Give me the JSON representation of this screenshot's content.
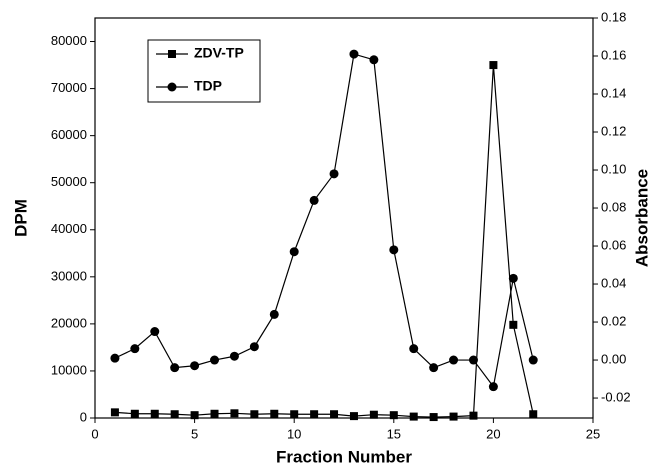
{
  "chart_data": {
    "type": "line",
    "x_label": "Fraction Number",
    "y_label": "DPM",
    "y2_label": "Absorbance",
    "x": [
      1,
      2,
      3,
      4,
      5,
      6,
      7,
      8,
      9,
      10,
      11,
      12,
      13,
      14,
      15,
      16,
      17,
      18,
      19,
      20,
      21,
      22
    ],
    "series": [
      {
        "name": "ZDV-TP",
        "color": "#000000",
        "marker": "square",
        "values": [
          1200,
          900,
          900,
          800,
          600,
          900,
          1000,
          800,
          900,
          800,
          800,
          800,
          400,
          700,
          600,
          300,
          200,
          300,
          500,
          75000,
          19800,
          800
        ]
      },
      {
        "name": "TDP",
        "color": "#000000",
        "marker": "circle",
        "axis": "y2",
        "values": [
          0.001,
          0.006,
          0.015,
          -0.004,
          -0.003,
          0.0,
          0.002,
          0.007,
          0.024,
          0.057,
          0.084,
          0.098,
          0.161,
          0.158,
          0.058,
          0.006,
          -0.004,
          0.0,
          0.0,
          -0.014,
          0.043,
          0.0
        ]
      }
    ],
    "xlim": [
      0,
      25
    ],
    "xticks": [
      0,
      5,
      10,
      15,
      20,
      25
    ],
    "ylim": [
      0,
      85000
    ],
    "yticks": [
      0,
      10000,
      20000,
      30000,
      40000,
      50000,
      60000,
      70000,
      80000
    ],
    "y2lim": [
      -0.0305,
      0.18
    ],
    "y2ticks": [
      {
        "value": -0.02,
        "label": "-0.02"
      },
      {
        "value": 0,
        "label": "0.00"
      },
      {
        "value": 0.02,
        "label": "0.02"
      },
      {
        "value": 0.04,
        "label": "0.04"
      },
      {
        "value": 0.06,
        "label": "0.06"
      },
      {
        "value": 0.08,
        "label": "0.08"
      },
      {
        "value": 0.1,
        "label": "0.10"
      },
      {
        "value": 0.12,
        "label": "0.12"
      },
      {
        "value": 0.14,
        "label": "0.14"
      },
      {
        "value": 0.16,
        "label": "0.16"
      },
      {
        "value": 0.18,
        "label": "0.18"
      }
    ],
    "grid": false,
    "legend": "upper left"
  }
}
